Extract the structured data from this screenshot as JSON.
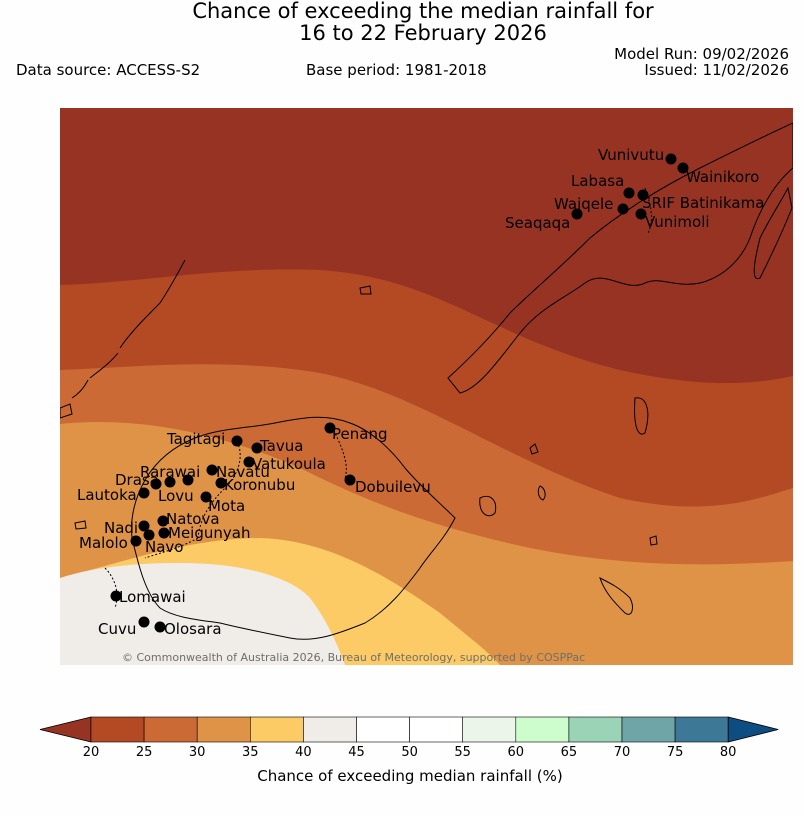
{
  "title": {
    "line1": "Chance of exceeding the median rainfall for",
    "line2": "16 to 22 February 2026"
  },
  "header": {
    "data_source": "Data source: ACCESS-S2",
    "base_period": "Base period: 1981-2018",
    "model_run": "Model Run: 09/02/2026",
    "issued": "Issued: 11/02/2026"
  },
  "map": {
    "copyright": "© Commonwealth of Australia 2026, Bureau of Meteorology, supported by COSPPac",
    "stations": [
      {
        "name": "Vunivutu"
      },
      {
        "name": "Wainikoro"
      },
      {
        "name": "Labasa"
      },
      {
        "name": "SRIF Batinikama"
      },
      {
        "name": "Waiqele"
      },
      {
        "name": "Seaqaqa"
      },
      {
        "name": "Vunimoli"
      },
      {
        "name": "Penang"
      },
      {
        "name": "Tagitagi"
      },
      {
        "name": "Tavua"
      },
      {
        "name": "Vatukoula"
      },
      {
        "name": "Rarawai"
      },
      {
        "name": "Navatu"
      },
      {
        "name": "Drasa"
      },
      {
        "name": "Koronubu"
      },
      {
        "name": "Lautoka"
      },
      {
        "name": "Lovu"
      },
      {
        "name": "Mota"
      },
      {
        "name": "Dobuilevu"
      },
      {
        "name": "Natova"
      },
      {
        "name": "Nadi"
      },
      {
        "name": "Meigunyah"
      },
      {
        "name": "Malolo"
      },
      {
        "name": "Navo"
      },
      {
        "name": "Lomawai"
      },
      {
        "name": "Cuvu"
      },
      {
        "name": "Olosara"
      }
    ]
  },
  "colorbar": {
    "label": "Chance of exceeding median rainfall (%)",
    "ticks": [
      "20",
      "25",
      "30",
      "35",
      "40",
      "45",
      "50",
      "55",
      "60",
      "65",
      "70",
      "75",
      "80"
    ],
    "colors": [
      "#b34a24",
      "#cb6a34",
      "#df9347",
      "#fdcb66",
      "#f0ece8",
      "#ffffff",
      "#ffffff",
      "#ecf5ea",
      "#cdfdcc",
      "#9bd3b7",
      "#6fa5a7",
      "#3d7997"
    ],
    "under_color": "#963323",
    "over_color": "#0e4d82"
  }
}
